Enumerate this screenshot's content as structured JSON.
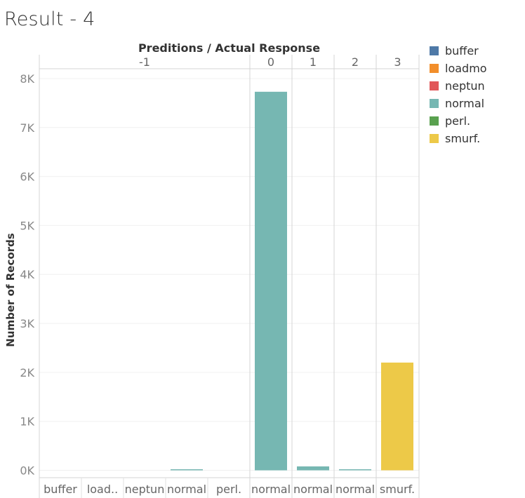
{
  "page_title": "Result - 4",
  "legend": {
    "items": [
      {
        "label": "buffer",
        "color": "#4e79a7"
      },
      {
        "label": "loadmo",
        "color": "#f28e2b"
      },
      {
        "label": "neptun",
        "color": "#e15759"
      },
      {
        "label": "normal",
        "color": "#76b7b2"
      },
      {
        "label": "perl.",
        "color": "#59a14f"
      },
      {
        "label": "smurf.",
        "color": "#edc948"
      }
    ]
  },
  "chart_data": {
    "type": "bar",
    "title": "Preditions / Actual Response",
    "ylabel": "Number of Records",
    "ylim": [
      -150,
      8200
    ],
    "y_ticks": [
      0,
      1000,
      2000,
      3000,
      4000,
      5000,
      6000,
      7000,
      8000
    ],
    "y_tick_labels": [
      "0K",
      "1K",
      "2K",
      "3K",
      "4K",
      "5K",
      "6K",
      "7K",
      "8K"
    ],
    "panels": [
      {
        "label": "-1",
        "categories": [
          {
            "label": "buffer",
            "class": "buffer",
            "value": 0
          },
          {
            "label": "load..",
            "class": "loadmo",
            "value": 0
          },
          {
            "label": "neptun",
            "class": "neptun",
            "value": 0
          },
          {
            "label": "normal",
            "class": "normal",
            "value": 20
          },
          {
            "label": "perl.",
            "class": "perl.",
            "value": 0
          }
        ]
      },
      {
        "label": "0",
        "categories": [
          {
            "label": "normal",
            "class": "normal",
            "value": 7730
          }
        ]
      },
      {
        "label": "1",
        "categories": [
          {
            "label": "normal",
            "class": "normal",
            "value": 80
          }
        ]
      },
      {
        "label": "2",
        "categories": [
          {
            "label": "normal",
            "class": "normal",
            "value": 15
          }
        ]
      },
      {
        "label": "3",
        "categories": [
          {
            "label": "smurf.",
            "class": "smurf.",
            "value": 2200
          }
        ]
      }
    ],
    "grid": true,
    "legend_position": "right"
  }
}
